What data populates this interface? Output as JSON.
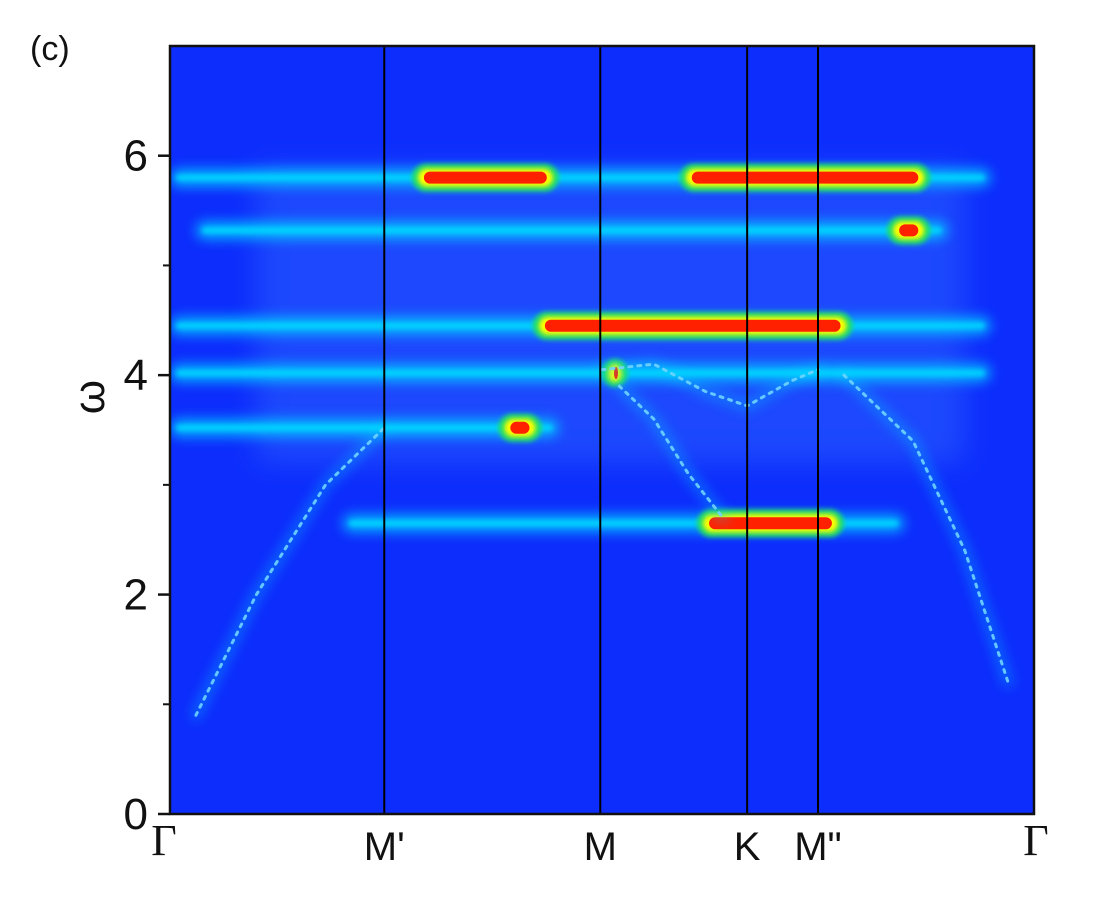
{
  "chart_data": {
    "type": "heatmap",
    "panel_label": "(c)",
    "xlabel": "",
    "ylabel": "ω",
    "ylim": [
      0,
      7
    ],
    "yticks_major": [
      0,
      2,
      4,
      6
    ],
    "yticks_minor": [
      1,
      3,
      5
    ],
    "ytick_labels": [
      "0",
      "2",
      "4",
      "6"
    ],
    "x_path_labels": [
      "Γ",
      "M'",
      "M",
      "K",
      "M\"",
      "Γ"
    ],
    "x_path_positions": [
      0,
      0.248,
      0.498,
      0.668,
      0.75,
      1.0
    ],
    "vertical_lines_at": [
      0.248,
      0.498,
      0.668,
      0.75
    ],
    "colormap": [
      "#0a30ff",
      "#00d8ff",
      "#20e060",
      "#ffff00",
      "#ff2000"
    ],
    "colormap_name": "jet",
    "background_color": "#0d2dfc",
    "flat_bands": [
      {
        "omega": 5.8,
        "k_range": [
          0.0,
          0.95
        ],
        "peak_segments": [
          [
            0.28,
            0.45
          ],
          [
            0.59,
            0.88
          ]
        ]
      },
      {
        "omega": 5.32,
        "k_range": [
          0.03,
          0.9
        ],
        "peak_segments": [
          [
            0.83,
            0.88
          ]
        ]
      },
      {
        "omega": 4.45,
        "k_range": [
          0.0,
          0.95
        ],
        "peak_segments": [
          [
            0.42,
            0.79
          ]
        ]
      },
      {
        "omega": 4.02,
        "k_range": [
          0.0,
          0.95
        ],
        "peak_segments": [
          [
            0.5,
            0.53
          ]
        ]
      },
      {
        "omega": 3.52,
        "k_range": [
          0.0,
          0.45
        ],
        "peak_segments": [
          [
            0.38,
            0.43
          ]
        ]
      },
      {
        "omega": 2.65,
        "k_range": [
          0.2,
          0.85
        ],
        "peak_segments": [
          [
            0.61,
            0.78
          ]
        ]
      }
    ],
    "dispersive_branches": [
      {
        "k": [
          0.03,
          0.1,
          0.18,
          0.248
        ],
        "omega": [
          0.9,
          2.0,
          3.0,
          3.52
        ]
      },
      {
        "k": [
          0.52,
          0.56,
          0.6,
          0.64
        ],
        "omega": [
          3.9,
          3.6,
          3.1,
          2.7
        ]
      },
      {
        "k": [
          0.5,
          0.56,
          0.62,
          0.668,
          0.72,
          0.75
        ],
        "omega": [
          4.05,
          4.1,
          3.85,
          3.72,
          3.95,
          4.05
        ]
      },
      {
        "k": [
          0.78,
          0.86,
          0.92,
          0.97
        ],
        "omega": [
          4.0,
          3.4,
          2.4,
          1.2
        ]
      }
    ]
  }
}
